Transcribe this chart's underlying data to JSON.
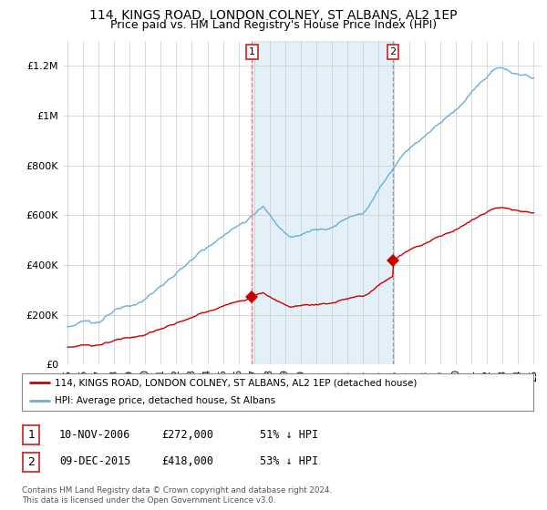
{
  "title": "114, KINGS ROAD, LONDON COLNEY, ST ALBANS, AL2 1EP",
  "subtitle": "Price paid vs. HM Land Registry's House Price Index (HPI)",
  "title_fontsize": 10,
  "subtitle_fontsize": 9,
  "ylim": [
    0,
    1300000
  ],
  "yticks": [
    0,
    200000,
    400000,
    600000,
    800000,
    1000000,
    1200000
  ],
  "ytick_labels": [
    "£0",
    "£200K",
    "£400K",
    "£600K",
    "£800K",
    "£1M",
    "£1.2M"
  ],
  "hpi_color": "#6baed6",
  "hpi_fill_color": "#d6e8f5",
  "price_color": "#cc0000",
  "sale1_year": 2006.87,
  "sale1_price": 272000,
  "sale2_year": 2015.93,
  "sale2_price": 418000,
  "legend_line1": "114, KINGS ROAD, LONDON COLNEY, ST ALBANS, AL2 1EP (detached house)",
  "legend_line2": "HPI: Average price, detached house, St Albans",
  "table_row1": [
    "1",
    "10-NOV-2006",
    "£272,000",
    "51% ↓ HPI"
  ],
  "table_row2": [
    "2",
    "09-DEC-2015",
    "£418,000",
    "53% ↓ HPI"
  ],
  "footer1": "Contains HM Land Registry data © Crown copyright and database right 2024.",
  "footer2": "This data is licensed under the Open Government Licence v3.0.",
  "background_color": "#ffffff",
  "grid_color": "#cccccc",
  "xstart": 1995,
  "xend": 2025
}
